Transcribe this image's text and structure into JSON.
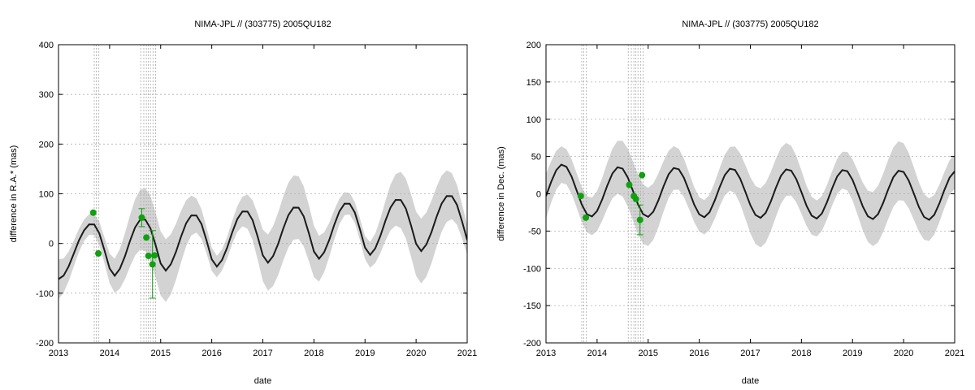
{
  "chart_data": [
    {
      "type": "line",
      "title": "NIMA-JPL // (303775) 2005QU182",
      "xlabel": "date",
      "ylabel": "difference in R.A.* (mas)",
      "xlim": [
        2013,
        2021
      ],
      "ylim": [
        -200,
        400
      ],
      "xticks": [
        2013,
        2014,
        2015,
        2016,
        2017,
        2018,
        2019,
        2020,
        2021
      ],
      "yticks": [
        -200,
        -100,
        0,
        100,
        200,
        300,
        400
      ],
      "grid": true,
      "colors": {
        "band": "#d3d3d3",
        "line": "#1a1a1a",
        "points": "#10a010",
        "vlines": "#a9a9a9"
      },
      "model": {
        "x": [
          2013.0,
          2013.1,
          2013.2,
          2013.3,
          2013.4,
          2013.5,
          2013.6,
          2013.7,
          2013.8,
          2013.9,
          2014.0,
          2014.1,
          2014.2,
          2014.3,
          2014.4,
          2014.5,
          2014.6,
          2014.7,
          2014.8,
          2014.9,
          2015.0,
          2015.1,
          2015.2,
          2015.3,
          2015.4,
          2015.5,
          2015.6,
          2015.7,
          2015.8,
          2015.9,
          2016.0,
          2016.1,
          2016.2,
          2016.3,
          2016.4,
          2016.5,
          2016.6,
          2016.7,
          2016.8,
          2016.9,
          2017.0,
          2017.1,
          2017.2,
          2017.3,
          2017.4,
          2017.5,
          2017.6,
          2017.7,
          2017.8,
          2017.9,
          2018.0,
          2018.1,
          2018.2,
          2018.3,
          2018.4,
          2018.5,
          2018.6,
          2018.7,
          2018.8,
          2018.9,
          2019.0,
          2019.1,
          2019.2,
          2019.3,
          2019.4,
          2019.5,
          2019.6,
          2019.7,
          2019.8,
          2019.9,
          2020.0,
          2020.1,
          2020.2,
          2020.3,
          2020.4,
          2020.5,
          2020.6,
          2020.7,
          2020.8,
          2020.9,
          2021.0
        ],
        "y": [
          -71.7,
          -64.6,
          -45.8,
          -20.1,
          6.2,
          26.3,
          38.4,
          38.2,
          20.0,
          -13.8,
          -50.1,
          -64.9,
          -51.2,
          -25.9,
          5.3,
          32.5,
          48.1,
          48.0,
          30.5,
          -2.9,
          -40.2,
          -54.7,
          -41.7,
          -16.8,
          14.1,
          41.1,
          56.5,
          56.3,
          38.8,
          5.3,
          -32.0,
          -46.5,
          -33.5,
          -8.7,
          22.2,
          49.1,
          64.4,
          64.2,
          46.8,
          13.2,
          -24.0,
          -38.6,
          -25.5,
          -0.7,
          30.2,
          57.0,
          72.3,
          72.1,
          54.6,
          21.0,
          -16.1,
          -30.7,
          -17.7,
          7.2,
          38.1,
          64.8,
          80.1,
          79.9,
          62.5,
          28.9,
          -8.3,
          -23.0,
          -9.9,
          14.9,
          45.8,
          72.5,
          87.8,
          87.6,
          70.2,
          36.6,
          -0.6,
          -15.3,
          -2.2,
          22.6,
          53.5,
          80.2,
          95.5,
          95.3,
          77.8,
          44.2,
          7.1
        ],
        "band_half_width": [
          40.1,
          34.4,
          29.7,
          25.9,
          23.2,
          21.6,
          21.0,
          21.6,
          23.2,
          25.9,
          29.7,
          34.4,
          40.1,
          46.1,
          51.8,
          56.5,
          60.3,
          63.0,
          64.6,
          65.2,
          64.6,
          63.0,
          60.3,
          56.5,
          51.8,
          46.1,
          40.1,
          34.4,
          29.7,
          25.9,
          23.2,
          21.6,
          21.0,
          21.6,
          23.2,
          25.9,
          29.7,
          34.4,
          40.1,
          46.1,
          51.8,
          56.5,
          60.3,
          63.0,
          64.6,
          65.2,
          64.6,
          63.0,
          60.3,
          56.5,
          51.8,
          46.1,
          40.1,
          34.4,
          29.7,
          25.9,
          23.2,
          21.6,
          21.0,
          21.6,
          23.2,
          25.9,
          29.7,
          34.4,
          40.1,
          46.1,
          51.8,
          56.5,
          60.3,
          63.0,
          64.6,
          65.2,
          64.6,
          63.0,
          60.3,
          56.5,
          51.8,
          46.1,
          40.1,
          34.4,
          29.7
        ]
      },
      "observations": [
        {
          "x": 2013.68,
          "y": 62
        },
        {
          "x": 2013.78,
          "y": -20
        },
        {
          "x": 2014.63,
          "y": 52,
          "err": 18
        },
        {
          "x": 2014.72,
          "y": 12
        },
        {
          "x": 2014.76,
          "y": -25
        },
        {
          "x": 2014.84,
          "y": -42,
          "err": 68
        },
        {
          "x": 2014.88,
          "y": -24
        }
      ],
      "vlines": [
        2013.7,
        2013.74,
        2013.79,
        2014.61,
        2014.67,
        2014.72,
        2014.76,
        2014.8,
        2014.85,
        2014.9
      ]
    },
    {
      "type": "line",
      "title": "NIMA-JPL // (303775) 2005QU182",
      "xlabel": "date",
      "ylabel": "difference in Dec. (mas)",
      "xlim": [
        2013,
        2021
      ],
      "ylim": [
        -200,
        200
      ],
      "xticks": [
        2013,
        2014,
        2015,
        2016,
        2017,
        2018,
        2019,
        2020,
        2021
      ],
      "yticks": [
        -200,
        -150,
        -100,
        -50,
        0,
        50,
        100,
        150,
        200
      ],
      "grid": true,
      "colors": {
        "band": "#d3d3d3",
        "line": "#1a1a1a",
        "points": "#10a010",
        "vlines": "#a9a9a9"
      },
      "model": {
        "x": [
          2013.0,
          2013.1,
          2013.2,
          2013.3,
          2013.4,
          2013.5,
          2013.6,
          2013.7,
          2013.8,
          2013.9,
          2014.0,
          2014.1,
          2014.2,
          2014.3,
          2014.4,
          2014.5,
          2014.6,
          2014.7,
          2014.8,
          2014.9,
          2015.0,
          2015.1,
          2015.2,
          2015.3,
          2015.4,
          2015.5,
          2015.6,
          2015.7,
          2015.8,
          2015.9,
          2016.0,
          2016.1,
          2016.2,
          2016.3,
          2016.4,
          2016.5,
          2016.6,
          2016.7,
          2016.8,
          2016.9,
          2017.0,
          2017.1,
          2017.2,
          2017.3,
          2017.4,
          2017.5,
          2017.6,
          2017.7,
          2017.8,
          2017.9,
          2018.0,
          2018.1,
          2018.2,
          2018.3,
          2018.4,
          2018.5,
          2018.6,
          2018.7,
          2018.8,
          2018.9,
          2019.0,
          2019.1,
          2019.2,
          2019.3,
          2019.4,
          2019.5,
          2019.6,
          2019.7,
          2019.8,
          2019.9,
          2020.0,
          2020.1,
          2020.2,
          2020.3,
          2020.4,
          2020.5,
          2020.6,
          2020.7,
          2020.8,
          2020.9,
          2021.0
        ],
        "y": [
          -3.1,
          15.8,
          31.6,
          39.2,
          36.2,
          23.3,
          4.5,
          -14.4,
          -27.4,
          -30.4,
          -23.1,
          -7.6,
          11.1,
          27.2,
          35.6,
          33.7,
          22.0,
          4.3,
          -14.1,
          -27.3,
          -31.0,
          -24.1,
          -8.8,
          9.8,
          26.1,
          34.6,
          32.9,
          21.4,
          3.9,
          -14.4,
          -27.6,
          -31.5,
          -24.8,
          -9.6,
          8.9,
          25.1,
          33.6,
          32.0,
          20.5,
          3.1,
          -15.2,
          -28.4,
          -32.3,
          -25.6,
          -10.5,
          8.0,
          24.2,
          32.7,
          31.1,
          19.6,
          2.2,
          -16.1,
          -29.3,
          -33.2,
          -26.5,
          -11.3,
          7.1,
          23.3,
          31.8,
          30.2,
          18.7,
          1.3,
          -16.9,
          -30.1,
          -34.0,
          -27.3,
          -12.2,
          6.2,
          22.4,
          30.9,
          29.3,
          17.8,
          0.4,
          -17.8,
          -31.0,
          -34.9,
          -28.2,
          -13.0,
          5.4,
          21.6,
          30.1
        ],
        "band_half_width": [
          30.0,
          27.8,
          26.0,
          24.6,
          23.6,
          23.1,
          23.0,
          23.3,
          24.1,
          25.2,
          26.8,
          28.7,
          31.0,
          33.3,
          35.5,
          37.3,
          38.7,
          39.6,
          40.0,
          39.8,
          39.1,
          37.8,
          36.0,
          33.9,
          31.5,
          29.3,
          27.4,
          25.7,
          24.4,
          23.5,
          23.0,
          23.1,
          23.5,
          24.4,
          25.6,
          27.3,
          29.2,
          31.5,
          33.8,
          35.9,
          37.6,
          38.9,
          39.7,
          40.0,
          39.7,
          38.8,
          37.5,
          35.6,
          33.4,
          31.1,
          28.9,
          27.0,
          25.4,
          24.2,
          23.4,
          23.0,
          23.1,
          23.6,
          24.6,
          25.9,
          27.6,
          29.7,
          32.0,
          34.3,
          36.3,
          37.9,
          39.1,
          39.8,
          39.9,
          39.6,
          38.6,
          37.2,
          35.2,
          33.0,
          30.7,
          28.5,
          26.7,
          25.2,
          24.0,
          23.3,
          23.0
        ]
      },
      "observations": [
        {
          "x": 2013.68,
          "y": -3
        },
        {
          "x": 2013.78,
          "y": -32
        },
        {
          "x": 2014.63,
          "y": 12
        },
        {
          "x": 2014.72,
          "y": -3
        },
        {
          "x": 2014.76,
          "y": -7
        },
        {
          "x": 2014.84,
          "y": -35,
          "err": 20
        },
        {
          "x": 2014.88,
          "y": 25
        }
      ],
      "vlines": [
        2013.7,
        2013.74,
        2013.79,
        2014.61,
        2014.67,
        2014.72,
        2014.76,
        2014.8,
        2014.85,
        2014.9
      ]
    }
  ]
}
